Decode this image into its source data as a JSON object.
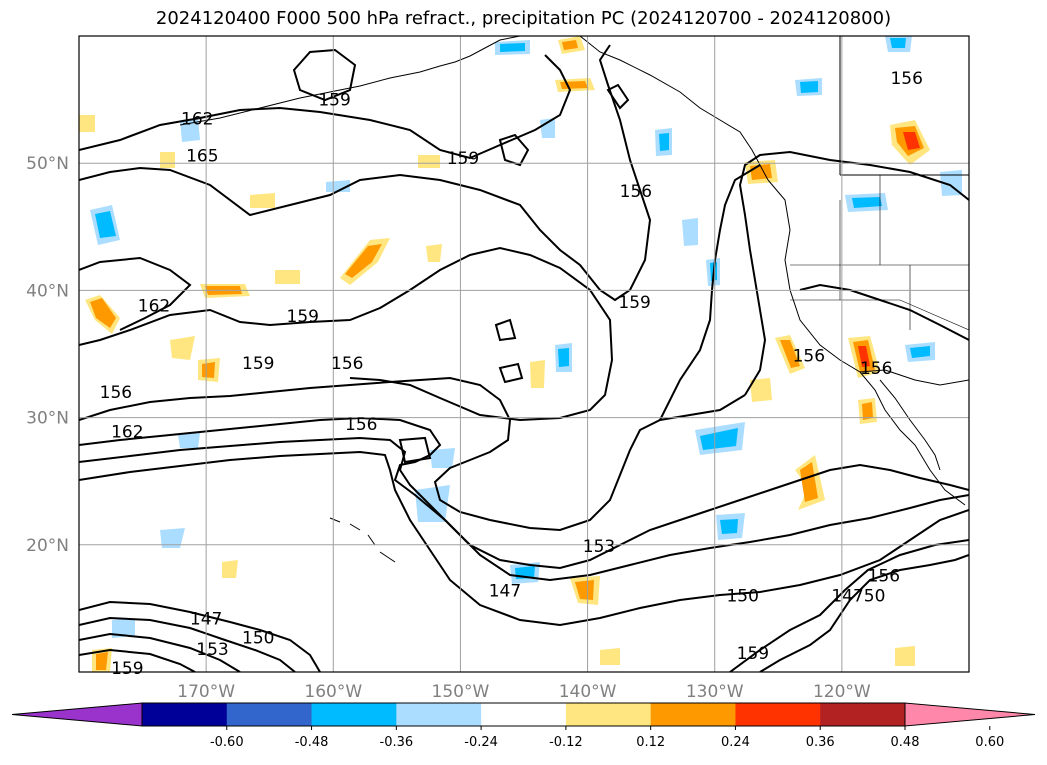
{
  "title": "2024120400 F000 500 hPa refract., precipitation PC (2024120700 - 2024120800)",
  "map": {
    "lon_range": [
      -180,
      -110
    ],
    "lat_range": [
      10,
      60
    ],
    "lat_ticks": [
      {
        "value": 20,
        "label": "20°N"
      },
      {
        "value": 30,
        "label": "30°N"
      },
      {
        "value": 40,
        "label": "40°N"
      },
      {
        "value": 50,
        "label": "50°N"
      }
    ],
    "lon_ticks": [
      {
        "value": -170,
        "label": "170°W"
      },
      {
        "value": -160,
        "label": "160°W"
      },
      {
        "value": -150,
        "label": "150°W"
      },
      {
        "value": -140,
        "label": "140°W"
      },
      {
        "value": -130,
        "label": "130°W"
      },
      {
        "value": -120,
        "label": "120°W"
      }
    ],
    "grid": true,
    "contour_labels": [
      {
        "text": "159",
        "lon": -159.9,
        "lat": 55.0
      },
      {
        "text": "162",
        "lon": -170.7,
        "lat": 53.5
      },
      {
        "text": "165",
        "lon": -170.3,
        "lat": 50.6
      },
      {
        "text": "159",
        "lon": -149.8,
        "lat": 50.4
      },
      {
        "text": "156",
        "lon": -136.2,
        "lat": 47.8
      },
      {
        "text": "156",
        "lon": -114.9,
        "lat": 56.7
      },
      {
        "text": "162",
        "lon": -174.1,
        "lat": 38.8
      },
      {
        "text": "159",
        "lon": -162.4,
        "lat": 38.0
      },
      {
        "text": "159",
        "lon": -165.9,
        "lat": 34.3
      },
      {
        "text": "156",
        "lon": -158.9,
        "lat": 34.3
      },
      {
        "text": "156",
        "lon": -177.1,
        "lat": 32.0
      },
      {
        "text": "159",
        "lon": -136.3,
        "lat": 39.1
      },
      {
        "text": "162",
        "lon": -176.2,
        "lat": 28.9
      },
      {
        "text": "156",
        "lon": -157.8,
        "lat": 29.5
      },
      {
        "text": "156",
        "lon": -122.6,
        "lat": 34.9
      },
      {
        "text": "156",
        "lon": -117.3,
        "lat": 33.9
      },
      {
        "text": "153",
        "lon": -139.1,
        "lat": 19.9
      },
      {
        "text": "147",
        "lon": -146.5,
        "lat": 16.4
      },
      {
        "text": "150",
        "lon": -127.8,
        "lat": 16.0
      },
      {
        "text": "156",
        "lon": -116.7,
        "lat": 17.6
      },
      {
        "text": "14750",
        "lon": -118.7,
        "lat": 16.0
      },
      {
        "text": "147",
        "lon": -170.0,
        "lat": 14.2
      },
      {
        "text": "150",
        "lon": -165.9,
        "lat": 12.7
      },
      {
        "text": "153",
        "lon": -169.5,
        "lat": 11.8
      },
      {
        "text": "159",
        "lon": -127.0,
        "lat": 11.5
      },
      {
        "text": "159",
        "lon": -176.2,
        "lat": 10.3
      }
    ]
  },
  "colorbar": {
    "colors": [
      "#9933cc",
      "#000099",
      "#3366cc",
      "#00bbff",
      "#aaddff",
      "#ffffff",
      "#ffe680",
      "#ff9900",
      "#ff3300",
      "#b22222",
      "#ff88aa"
    ],
    "tick_labels": [
      "-0.60",
      "-0.48",
      "-0.36",
      "-0.24",
      "-0.12",
      "0.12",
      "0.24",
      "0.36",
      "0.48",
      "0.60"
    ]
  }
}
